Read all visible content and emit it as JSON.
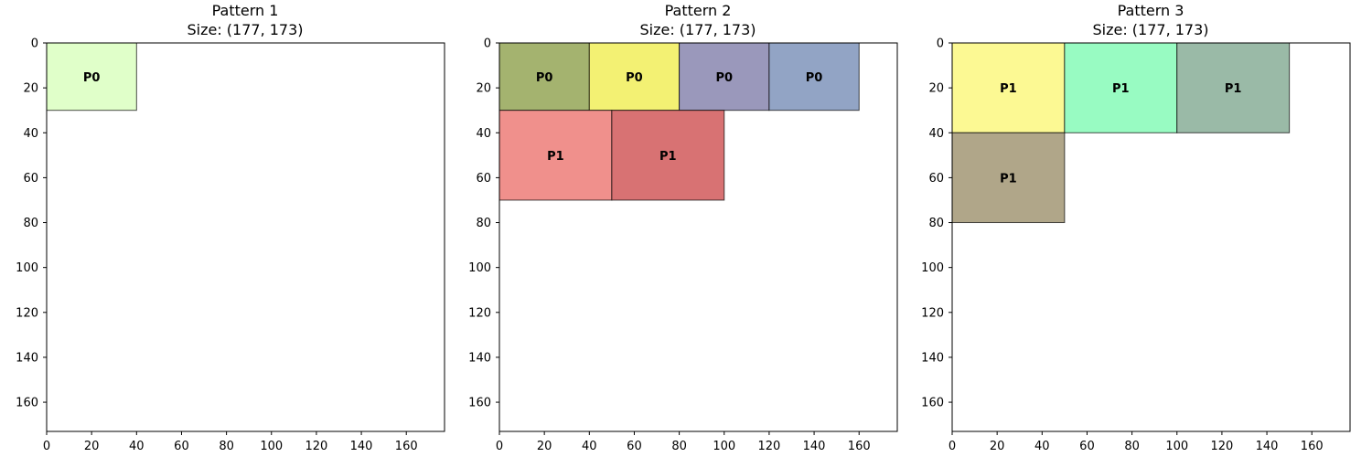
{
  "chart_data": [
    {
      "type": "rectangle-layout",
      "title": "Pattern 1",
      "subtitle": "Size: (177, 173)",
      "xlim": [
        0,
        177
      ],
      "ylim": [
        173,
        0
      ],
      "xticks": [
        0,
        20,
        40,
        60,
        80,
        100,
        120,
        140,
        160
      ],
      "yticks": [
        0,
        20,
        40,
        60,
        80,
        100,
        120,
        140,
        160
      ],
      "grid": false,
      "rects": [
        {
          "label": "P0",
          "x": 0,
          "y": 0,
          "w": 40,
          "h": 30,
          "color": "#e0ffc9"
        }
      ]
    },
    {
      "type": "rectangle-layout",
      "title": "Pattern 2",
      "subtitle": "Size: (177, 173)",
      "xlim": [
        0,
        177
      ],
      "ylim": [
        173,
        0
      ],
      "xticks": [
        0,
        20,
        40,
        60,
        80,
        100,
        120,
        140,
        160
      ],
      "yticks": [
        0,
        20,
        40,
        60,
        80,
        100,
        120,
        140,
        160
      ],
      "grid": false,
      "rects": [
        {
          "label": "P0",
          "x": 0,
          "y": 0,
          "w": 40,
          "h": 30,
          "color": "#a4b36f"
        },
        {
          "label": "P0",
          "x": 40,
          "y": 0,
          "w": 40,
          "h": 30,
          "color": "#f3f173"
        },
        {
          "label": "P0",
          "x": 80,
          "y": 0,
          "w": 40,
          "h": 30,
          "color": "#9a98bb"
        },
        {
          "label": "P0",
          "x": 120,
          "y": 0,
          "w": 40,
          "h": 30,
          "color": "#92a4c5"
        },
        {
          "label": "P1",
          "x": 0,
          "y": 30,
          "w": 50,
          "h": 40,
          "color": "#f0908c"
        },
        {
          "label": "P1",
          "x": 50,
          "y": 30,
          "w": 50,
          "h": 40,
          "color": "#d87273"
        }
      ]
    },
    {
      "type": "rectangle-layout",
      "title": "Pattern 3",
      "subtitle": "Size: (177, 173)",
      "xlim": [
        0,
        177
      ],
      "ylim": [
        173,
        0
      ],
      "xticks": [
        0,
        20,
        40,
        60,
        80,
        100,
        120,
        140,
        160
      ],
      "yticks": [
        0,
        20,
        40,
        60,
        80,
        100,
        120,
        140,
        160
      ],
      "grid": false,
      "rects": [
        {
          "label": "P1",
          "x": 0,
          "y": 0,
          "w": 50,
          "h": 40,
          "color": "#fcf993"
        },
        {
          "label": "P1",
          "x": 50,
          "y": 0,
          "w": 50,
          "h": 40,
          "color": "#98fbc2"
        },
        {
          "label": "P1",
          "x": 100,
          "y": 0,
          "w": 50,
          "h": 40,
          "color": "#9abaa7"
        },
        {
          "label": "P1",
          "x": 0,
          "y": 40,
          "w": 50,
          "h": 40,
          "color": "#b0a689"
        }
      ]
    }
  ]
}
